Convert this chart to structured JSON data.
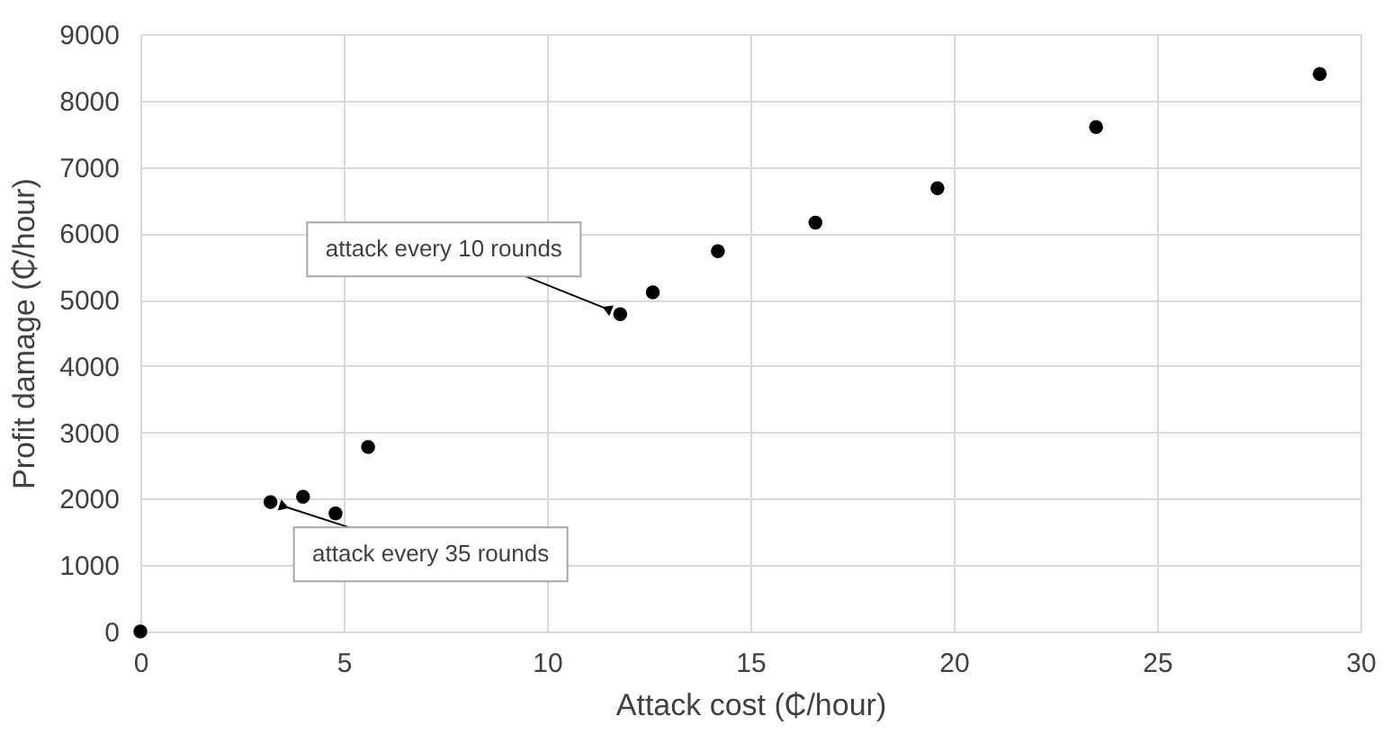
{
  "chart_data": {
    "type": "scatter",
    "xlabel": "Attack cost (₵/hour)",
    "ylabel": "Profit damage (₵/hour)",
    "x": [
      0,
      3.2,
      4.0,
      4.8,
      5.6,
      11.8,
      12.6,
      14.2,
      16.6,
      19.6,
      23.5,
      29.0
    ],
    "series": [
      {
        "color": "#000000",
        "values": [
          0,
          1950,
          2030,
          1780,
          2780,
          4780,
          5110,
          5730,
          6160,
          6680,
          7600,
          8400
        ]
      }
    ],
    "xlim": [
      0,
      30
    ],
    "xticks": [
      0,
      5,
      10,
      15,
      20,
      25,
      30
    ],
    "ylim": [
      0,
      9000
    ],
    "yticks": [
      0,
      1000,
      2000,
      3000,
      4000,
      5000,
      6000,
      7000,
      8000,
      9000
    ],
    "grid": true,
    "marker": "circle",
    "annotations": [
      {
        "text": "attack every 10 rounds",
        "x": 11.8,
        "y": 4780
      },
      {
        "text": "attack every 35 rounds",
        "x": 3.2,
        "y": 1950
      }
    ]
  }
}
